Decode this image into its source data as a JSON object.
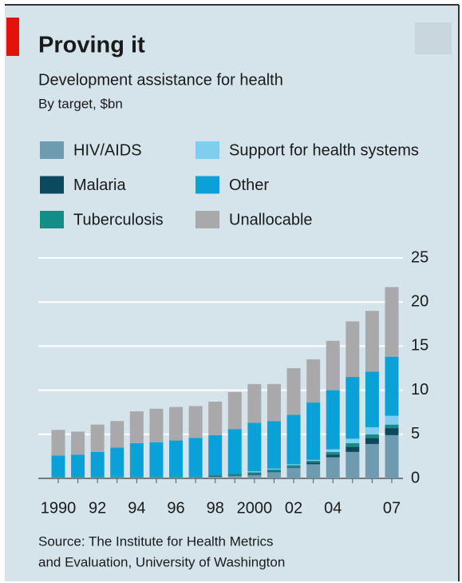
{
  "chart_data": {
    "type": "stacked_bar",
    "title": "Proving it",
    "subtitle": "Development assistance for health",
    "unit_label": "By target, $bn",
    "categories": [
      "1990",
      null,
      "92",
      null,
      "94",
      null,
      "96",
      null,
      "98",
      null,
      "2000",
      null,
      "02",
      null,
      "04",
      null,
      null,
      "07"
    ],
    "series": [
      {
        "name": "HIV/AIDS",
        "color": "#6f9bb0",
        "values": [
          0.1,
          0.1,
          0.1,
          0.1,
          0.1,
          0.1,
          0.1,
          0.1,
          0.2,
          0.3,
          0.4,
          0.7,
          1.2,
          1.6,
          2.4,
          3.0,
          3.9,
          4.9
        ]
      },
      {
        "name": "Malaria",
        "color": "#0b4a5e",
        "values": [
          0,
          0,
          0,
          0,
          0,
          0,
          0,
          0,
          0.1,
          0.1,
          0.1,
          0.1,
          0.1,
          0.2,
          0.3,
          0.6,
          0.7,
          0.8
        ]
      },
      {
        "name": "Tuberculosis",
        "color": "#138d86",
        "values": [
          0.1,
          0.1,
          0.1,
          0.1,
          0.1,
          0.1,
          0.1,
          0.1,
          0.1,
          0.1,
          0.2,
          0.2,
          0.2,
          0.2,
          0.3,
          0.4,
          0.4,
          0.4
        ]
      },
      {
        "name": "Support for health systems",
        "color": "#7fcdef",
        "values": [
          0,
          0,
          0,
          0,
          0,
          0,
          0,
          0,
          0,
          0,
          0.1,
          0.1,
          0.1,
          0.1,
          0.3,
          0.5,
          0.8,
          1.0
        ]
      },
      {
        "name": "Other",
        "color": "#0aa0d8",
        "values": [
          2.4,
          2.5,
          2.8,
          3.3,
          3.8,
          3.9,
          4.1,
          4.4,
          4.5,
          5.1,
          5.5,
          5.4,
          5.6,
          6.5,
          6.7,
          7.0,
          6.3,
          6.7
        ]
      },
      {
        "name": "Unallocable",
        "color": "#a9a9ab",
        "values": [
          2.9,
          2.6,
          3.1,
          3.0,
          3.6,
          3.8,
          3.8,
          3.6,
          3.8,
          4.2,
          4.4,
          4.2,
          5.3,
          4.9,
          5.6,
          6.3,
          6.9,
          7.9
        ]
      }
    ],
    "ylim": [
      0,
      25
    ],
    "yticks": [
      0,
      5,
      10,
      15,
      20,
      25
    ],
    "grid": true,
    "source": [
      "Source: The Institute for Health Metrics",
      "and Evaluation, University of Washington"
    ]
  }
}
